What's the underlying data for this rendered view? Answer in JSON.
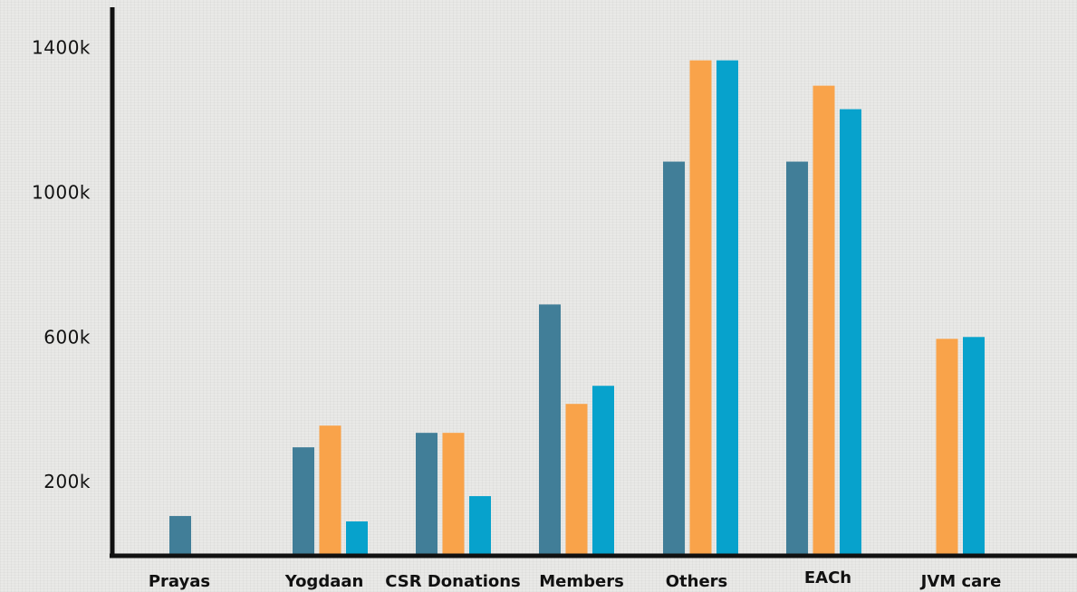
{
  "chart_data": {
    "type": "bar",
    "title": "",
    "xlabel": "",
    "ylabel": "",
    "ylim": [
      0,
      1500
    ],
    "yticks": [
      200,
      600,
      1000,
      1400
    ],
    "ytick_labels": [
      "200k",
      "600k",
      "1000k",
      "1400k"
    ],
    "categories": [
      "Prayas",
      "Yogdaan",
      "CSR Donations",
      "Members",
      "Others",
      "EACh",
      "JVM care"
    ],
    "series": [
      {
        "color": "#417e98",
        "values": [
          105,
          295,
          335,
          690,
          1085,
          1085,
          0
        ]
      },
      {
        "color": "#f9a34a",
        "values": [
          0,
          355,
          335,
          415,
          1365,
          1295,
          595
        ]
      },
      {
        "color": "#07a2cc",
        "values": [
          0,
          90,
          160,
          465,
          1365,
          1230,
          600
        ]
      }
    ],
    "grid": false,
    "legend": "none"
  }
}
